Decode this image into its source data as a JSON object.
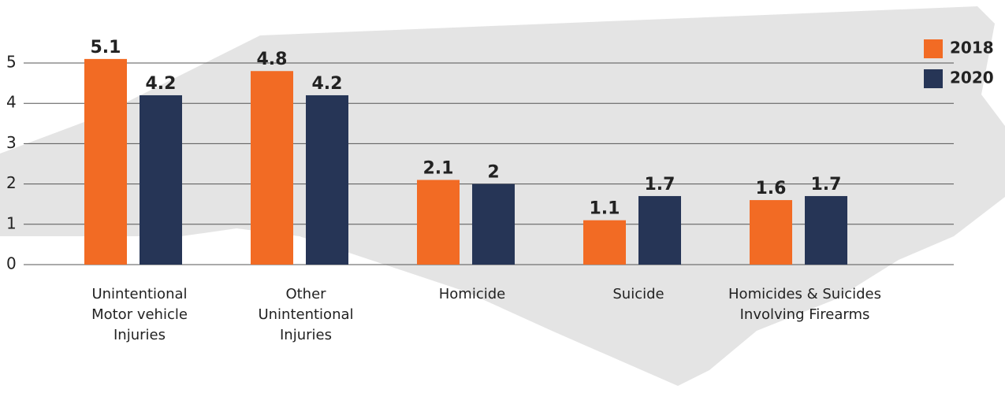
{
  "chart_data": {
    "type": "bar",
    "categories": [
      "Unintentional\nMotor vehicle\nInjuries",
      "Other\nUnintentional\nInjuries",
      "Homicide",
      "Suicide",
      "Homicides & Suicides\nInvolving Firearms"
    ],
    "series": [
      {
        "name": "2018",
        "color": "#f26b24",
        "values": [
          5.1,
          4.8,
          2.1,
          1.1,
          1.6
        ]
      },
      {
        "name": "2020",
        "color": "#263556",
        "values": [
          4.2,
          4.2,
          2,
          1.7,
          1.7
        ]
      }
    ],
    "ylim": [
      0,
      5
    ],
    "yticks": [
      0,
      1,
      2,
      3,
      4,
      5
    ],
    "grid": true,
    "legend": "top-right"
  }
}
